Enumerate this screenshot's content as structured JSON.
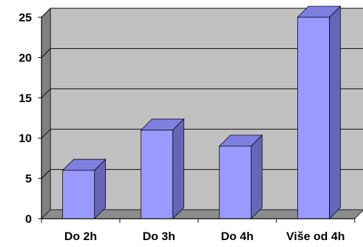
{
  "chart_data": {
    "type": "bar",
    "categories": [
      "Do 2h",
      "Do 3h",
      "Do 4h",
      "Više od 4h"
    ],
    "values": [
      6,
      11,
      9,
      25
    ],
    "title": "",
    "xlabel": "",
    "ylabel": "",
    "ylim": [
      0,
      25
    ],
    "yticks": [
      0,
      5,
      10,
      15,
      20,
      25
    ],
    "grid": true,
    "legend": "none",
    "three_d": true
  },
  "colors": {
    "bar_front": "#9999ff",
    "bar_top": "#7f7fe0",
    "bar_side": "#6666b8",
    "wall": "#c0c0c0",
    "wall_side": "#808080",
    "floor": "#8c8c8c",
    "grid": "#000000"
  }
}
